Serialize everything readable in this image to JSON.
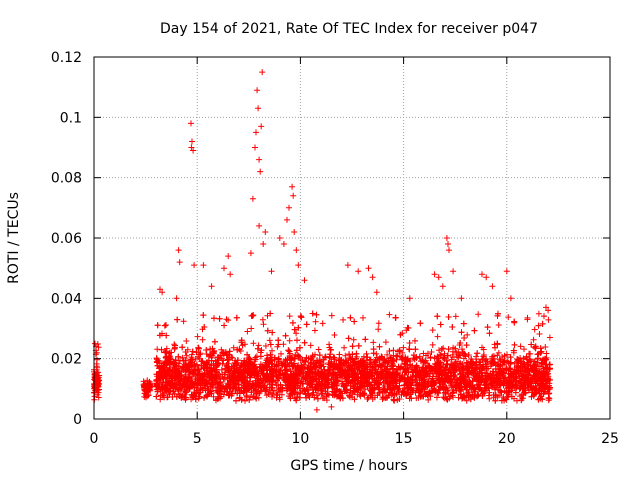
{
  "chart_data": {
    "type": "scatter",
    "title": "Day 154 of 2021, Rate Of TEC Index for receiver p047",
    "xlabel": "GPS time / hours",
    "ylabel": "ROTI / TECUs",
    "xlim": [
      0,
      25
    ],
    "ylim": [
      0,
      0.12
    ],
    "xticks": [
      0,
      5,
      10,
      15,
      20,
      25
    ],
    "yticks": [
      0,
      0.02,
      0.04,
      0.06,
      0.08,
      0.1,
      0.12
    ],
    "xtick_labels": [
      "0",
      "5",
      "10",
      "15",
      "20",
      "25"
    ],
    "ytick_labels": [
      "0",
      "0.02",
      "0.04",
      "0.06",
      "0.08",
      "0.1",
      "0.12"
    ],
    "grid": true,
    "marker": "+",
    "color": "#ff0000",
    "density_segments": [
      {
        "x_range": [
          0.0,
          0.25
        ],
        "baseline": 0.012,
        "spread": 0.006,
        "max": 0.025,
        "count": 90
      },
      {
        "x_range": [
          2.4,
          2.75
        ],
        "baseline": 0.01,
        "spread": 0.004,
        "max": 0.014,
        "count": 60
      },
      {
        "x_range": [
          3.0,
          22.1
        ],
        "baseline": 0.014,
        "spread": 0.012,
        "max": 0.035,
        "count": 5200
      }
    ],
    "notable_points": [
      {
        "x": 0.05,
        "y": 0.025
      },
      {
        "x": 0.1,
        "y": 0.024
      },
      {
        "x": 3.2,
        "y": 0.043
      },
      {
        "x": 3.3,
        "y": 0.042
      },
      {
        "x": 4.0,
        "y": 0.04
      },
      {
        "x": 4.1,
        "y": 0.056
      },
      {
        "x": 4.15,
        "y": 0.052
      },
      {
        "x": 4.7,
        "y": 0.098
      },
      {
        "x": 4.75,
        "y": 0.092
      },
      {
        "x": 4.8,
        "y": 0.089
      },
      {
        "x": 4.72,
        "y": 0.09
      },
      {
        "x": 4.85,
        "y": 0.051
      },
      {
        "x": 5.3,
        "y": 0.051
      },
      {
        "x": 5.7,
        "y": 0.044
      },
      {
        "x": 6.3,
        "y": 0.05
      },
      {
        "x": 6.5,
        "y": 0.054
      },
      {
        "x": 6.6,
        "y": 0.048
      },
      {
        "x": 7.6,
        "y": 0.055
      },
      {
        "x": 7.8,
        "y": 0.09
      },
      {
        "x": 7.85,
        "y": 0.095
      },
      {
        "x": 7.9,
        "y": 0.109
      },
      {
        "x": 7.95,
        "y": 0.103
      },
      {
        "x": 8.0,
        "y": 0.086
      },
      {
        "x": 8.05,
        "y": 0.082
      },
      {
        "x": 8.1,
        "y": 0.097
      },
      {
        "x": 8.15,
        "y": 0.115
      },
      {
        "x": 8.0,
        "y": 0.064
      },
      {
        "x": 8.2,
        "y": 0.058
      },
      {
        "x": 7.7,
        "y": 0.073
      },
      {
        "x": 8.3,
        "y": 0.062
      },
      {
        "x": 8.6,
        "y": 0.049
      },
      {
        "x": 9.0,
        "y": 0.06
      },
      {
        "x": 9.2,
        "y": 0.058
      },
      {
        "x": 9.35,
        "y": 0.066
      },
      {
        "x": 9.45,
        "y": 0.07
      },
      {
        "x": 9.6,
        "y": 0.077
      },
      {
        "x": 9.65,
        "y": 0.074
      },
      {
        "x": 9.7,
        "y": 0.062
      },
      {
        "x": 9.8,
        "y": 0.056
      },
      {
        "x": 9.9,
        "y": 0.051
      },
      {
        "x": 10.2,
        "y": 0.046
      },
      {
        "x": 12.3,
        "y": 0.051
      },
      {
        "x": 12.8,
        "y": 0.049
      },
      {
        "x": 13.3,
        "y": 0.05
      },
      {
        "x": 13.5,
        "y": 0.047
      },
      {
        "x": 13.7,
        "y": 0.042
      },
      {
        "x": 15.3,
        "y": 0.04
      },
      {
        "x": 16.5,
        "y": 0.048
      },
      {
        "x": 16.7,
        "y": 0.047
      },
      {
        "x": 16.9,
        "y": 0.044
      },
      {
        "x": 17.1,
        "y": 0.06
      },
      {
        "x": 17.15,
        "y": 0.058
      },
      {
        "x": 17.2,
        "y": 0.056
      },
      {
        "x": 17.4,
        "y": 0.049
      },
      {
        "x": 17.8,
        "y": 0.04
      },
      {
        "x": 18.8,
        "y": 0.048
      },
      {
        "x": 19.0,
        "y": 0.047
      },
      {
        "x": 19.3,
        "y": 0.044
      },
      {
        "x": 20.0,
        "y": 0.049
      },
      {
        "x": 20.2,
        "y": 0.04
      },
      {
        "x": 21.0,
        "y": 0.033
      },
      {
        "x": 21.9,
        "y": 0.037
      },
      {
        "x": 22.0,
        "y": 0.036
      },
      {
        "x": 10.8,
        "y": 0.003
      },
      {
        "x": 11.5,
        "y": 0.004
      }
    ]
  }
}
